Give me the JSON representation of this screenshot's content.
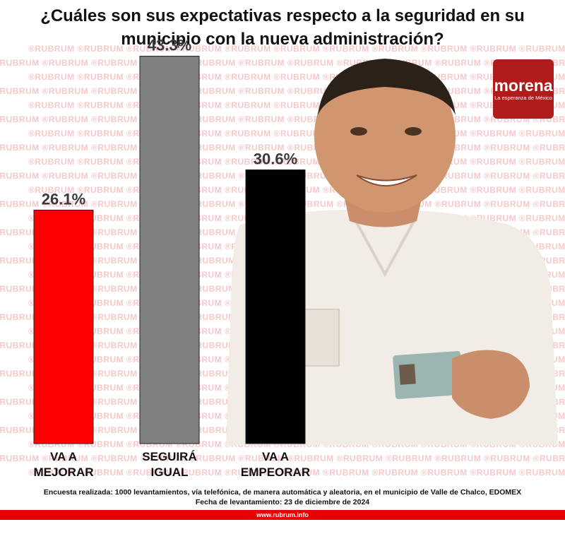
{
  "title": "¿Cuáles son sus expectativas respecto a la seguridad en su municipio con la nueva administración?",
  "watermark_text": "®RUBRUM",
  "logo": {
    "word": "morena",
    "tagline": "La esperanza de México"
  },
  "chart_data": {
    "type": "bar",
    "categories": [
      [
        "VA A",
        "MEJORAR"
      ],
      [
        "SEGUIRÁ",
        "IGUAL"
      ],
      [
        "VA A",
        "EMPEORAR"
      ]
    ],
    "values": [
      26.1,
      43.3,
      30.6
    ],
    "value_labels": [
      "26.1%",
      "43.3%",
      "30.6%"
    ],
    "colors": [
      "#ff0000",
      "#808080",
      "#000000"
    ],
    "ylim": [
      0,
      45
    ],
    "grid": false,
    "legend": "none"
  },
  "footer": {
    "line1": "Encuesta realizada: 1000 levantamientos, vía telefónica, de manera automática y aleatoria, en el municipio de Valle de Chalco, EDOMEX",
    "line2": "Fecha de levantamiento: 23 de diciembre de 2024"
  },
  "url": "www.rubrum.info"
}
